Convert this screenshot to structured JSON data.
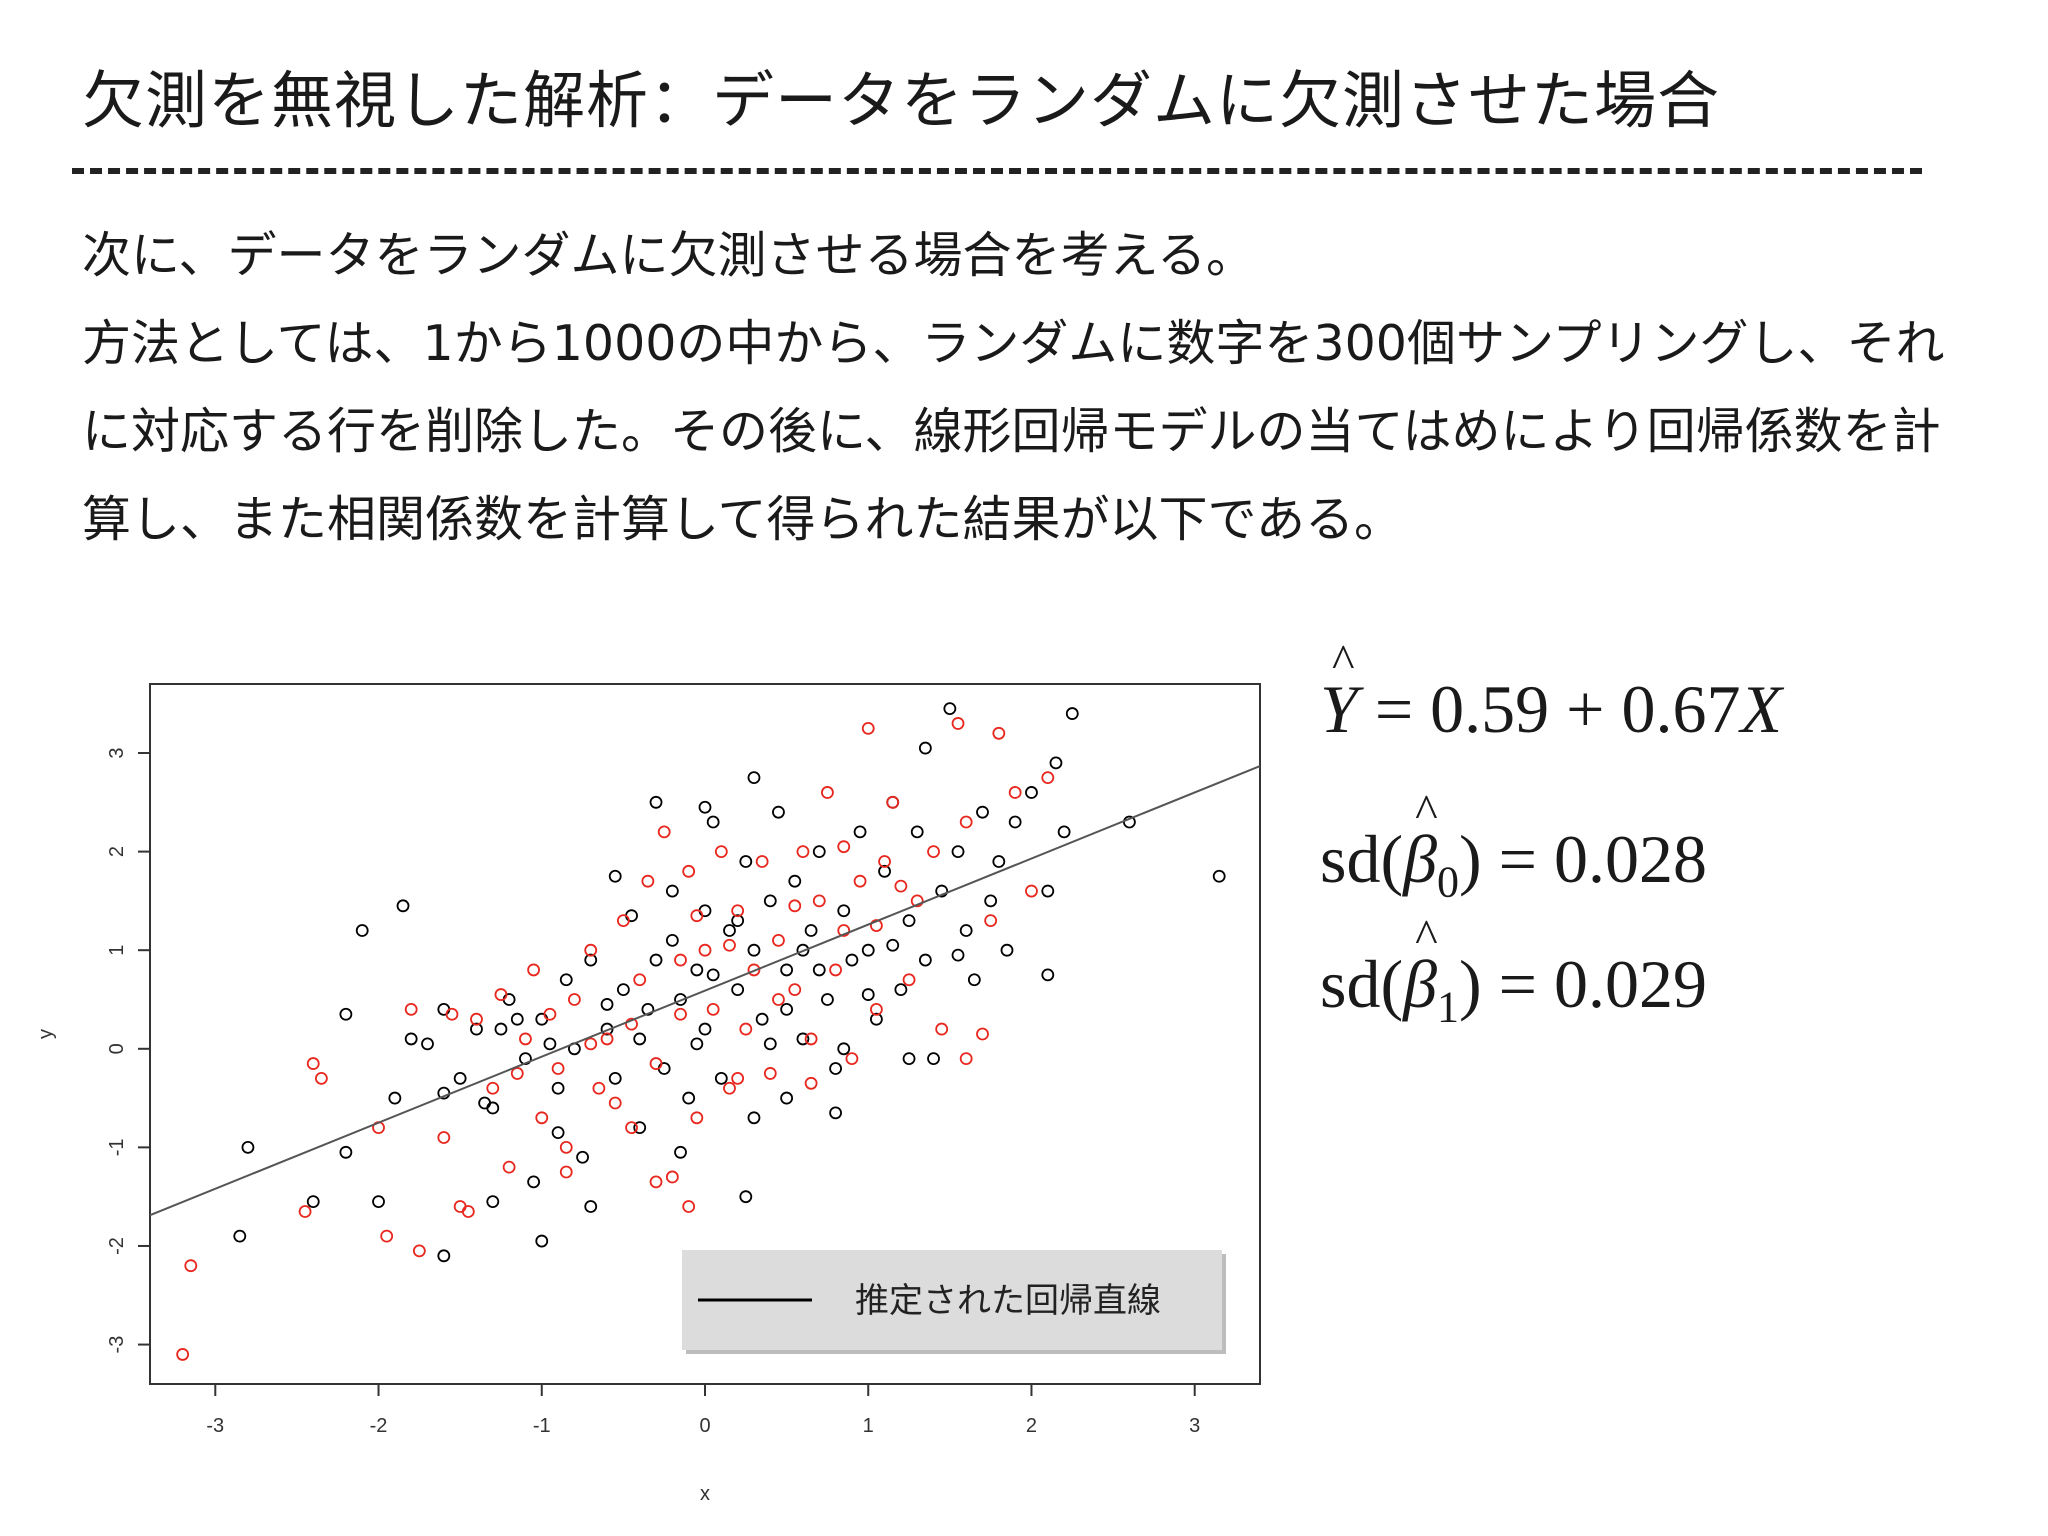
{
  "slide": {
    "title": "欠測を無視した解析：データをランダムに欠測させた場合",
    "paragraphs": [
      "次に、データをランダムに欠測させる場合を考える。",
      "方法としては、1から1000の中から、ランダムに数字を300個サンプリングし、それに対応する行を削除した。その後に、線形回帰モデルの当てはめにより回帰係数を計算し、また相関係数を計算して得られた結果が以下である。"
    ],
    "equations": {
      "regression": {
        "lhs": "Y",
        "rhs": "= 0.59 + 0.67",
        "var": "X"
      },
      "sd_beta0": {
        "lhs": "sd(",
        "sym": "β",
        "sub": "0",
        "rhs": ") = 0.028"
      },
      "sd_beta1": {
        "lhs": "sd(",
        "sym": "β",
        "sub": "1",
        "rhs": ") = 0.029"
      }
    }
  },
  "chart_data": {
    "type": "scatter",
    "xlabel": "x",
    "ylabel": "y",
    "xlim": [
      -3.4,
      3.4
    ],
    "ylim": [
      -3.4,
      3.7
    ],
    "xticks": [
      -3,
      -2,
      -1,
      0,
      1,
      2,
      3
    ],
    "yticks": [
      -3,
      -2,
      -1,
      0,
      1,
      2,
      3
    ],
    "legend": {
      "label": "推定された回帰直線",
      "placement": "bottom-right"
    },
    "regression_line": {
      "intercept": 0.59,
      "slope": 0.67,
      "color": "#555555"
    },
    "series": [
      {
        "color": "#000000",
        "points": [
          [
            -1.85,
            1.45
          ],
          [
            -2.1,
            1.2
          ],
          [
            -2.2,
            0.35
          ],
          [
            -2.8,
            -1.0
          ],
          [
            -2.4,
            -1.55
          ],
          [
            -2.0,
            -1.55
          ],
          [
            -2.2,
            -1.05
          ],
          [
            -1.9,
            -0.5
          ],
          [
            -1.8,
            0.1
          ],
          [
            -1.6,
            0.4
          ],
          [
            -1.5,
            -0.3
          ],
          [
            -1.4,
            0.2
          ],
          [
            -1.3,
            -0.6
          ],
          [
            -1.2,
            0.5
          ],
          [
            -1.1,
            -0.1
          ],
          [
            -1.0,
            0.3
          ],
          [
            -0.9,
            -0.4
          ],
          [
            -0.85,
            0.7
          ],
          [
            -0.8,
            0.0
          ],
          [
            -0.75,
            -1.1
          ],
          [
            -0.7,
            0.9
          ],
          [
            -0.6,
            0.2
          ],
          [
            -0.55,
            -0.3
          ],
          [
            -0.5,
            0.6
          ],
          [
            -0.45,
            1.35
          ],
          [
            -0.4,
            -0.8
          ],
          [
            -0.35,
            0.4
          ],
          [
            -0.3,
            2.5
          ],
          [
            -0.3,
            0.9
          ],
          [
            -0.25,
            -0.2
          ],
          [
            -0.2,
            1.1
          ],
          [
            -0.15,
            0.5
          ],
          [
            -0.1,
            -0.5
          ],
          [
            -0.05,
            0.8
          ],
          [
            0.0,
            1.4
          ],
          [
            0.0,
            0.2
          ],
          [
            0.05,
            2.3
          ],
          [
            0.1,
            -0.3
          ],
          [
            0.15,
            1.2
          ],
          [
            0.2,
            0.6
          ],
          [
            0.25,
            1.9
          ],
          [
            0.3,
            -0.7
          ],
          [
            0.3,
            1.0
          ],
          [
            0.35,
            0.3
          ],
          [
            0.4,
            1.5
          ],
          [
            0.45,
            2.4
          ],
          [
            0.5,
            0.8
          ],
          [
            0.5,
            -0.5
          ],
          [
            0.55,
            1.7
          ],
          [
            0.6,
            0.1
          ],
          [
            0.65,
            1.2
          ],
          [
            0.7,
            2.0
          ],
          [
            0.75,
            0.5
          ],
          [
            0.8,
            -0.2
          ],
          [
            0.85,
            1.4
          ],
          [
            0.9,
            0.9
          ],
          [
            0.95,
            2.2
          ],
          [
            1.0,
            1.0
          ],
          [
            1.05,
            0.3
          ],
          [
            1.1,
            1.8
          ],
          [
            1.15,
            2.5
          ],
          [
            1.2,
            0.6
          ],
          [
            1.25,
            1.3
          ],
          [
            1.3,
            2.2
          ],
          [
            1.35,
            0.9
          ],
          [
            1.4,
            -0.1
          ],
          [
            1.45,
            1.6
          ],
          [
            1.5,
            3.45
          ],
          [
            1.55,
            2.0
          ],
          [
            1.6,
            1.2
          ],
          [
            1.65,
            0.7
          ],
          [
            1.7,
            2.4
          ],
          [
            1.75,
            1.5
          ],
          [
            1.8,
            1.9
          ],
          [
            1.85,
            1.0
          ],
          [
            1.9,
            2.3
          ],
          [
            2.0,
            2.6
          ],
          [
            2.1,
            1.6
          ],
          [
            2.15,
            2.9
          ],
          [
            2.2,
            2.2
          ],
          [
            2.25,
            3.4
          ],
          [
            2.1,
            0.75
          ],
          [
            2.6,
            2.3
          ],
          [
            3.15,
            1.75
          ],
          [
            1.35,
            3.05
          ],
          [
            1.0,
            0.55
          ],
          [
            0.85,
            0.0
          ],
          [
            -1.3,
            -1.55
          ],
          [
            -1.0,
            -1.95
          ],
          [
            -1.6,
            -2.1
          ],
          [
            -2.85,
            -1.9
          ],
          [
            -1.05,
            -1.35
          ],
          [
            -0.7,
            -1.6
          ],
          [
            0.25,
            -1.5
          ],
          [
            0.8,
            -0.65
          ],
          [
            1.25,
            -0.1
          ],
          [
            -0.55,
            1.75
          ],
          [
            -0.2,
            1.6
          ],
          [
            0.3,
            2.75
          ],
          [
            0.0,
            2.45
          ],
          [
            -1.6,
            -0.45
          ],
          [
            -1.7,
            0.05
          ],
          [
            -0.95,
            0.05
          ],
          [
            -0.6,
            0.45
          ],
          [
            0.4,
            0.05
          ],
          [
            0.6,
            1.0
          ],
          [
            1.15,
            1.05
          ],
          [
            -0.05,
            0.05
          ],
          [
            -0.4,
            0.1
          ],
          [
            -1.15,
            0.3
          ],
          [
            -1.35,
            -0.55
          ],
          [
            0.2,
            1.3
          ],
          [
            0.7,
            0.8
          ],
          [
            -1.25,
            0.2
          ],
          [
            -0.9,
            -0.85
          ],
          [
            0.5,
            0.4
          ],
          [
            1.55,
            0.95
          ],
          [
            0.05,
            0.75
          ],
          [
            -0.15,
            -1.05
          ]
        ]
      },
      {
        "color": "#e8281e",
        "points": [
          [
            -3.2,
            -3.1
          ],
          [
            -3.15,
            -2.2
          ],
          [
            -2.45,
            -1.65
          ],
          [
            -2.35,
            -0.3
          ],
          [
            -2.0,
            -0.8
          ],
          [
            -1.95,
            -1.9
          ],
          [
            -1.75,
            -2.05
          ],
          [
            -1.8,
            0.4
          ],
          [
            -1.6,
            -0.9
          ],
          [
            -1.5,
            -1.6
          ],
          [
            -1.4,
            0.3
          ],
          [
            -1.3,
            -0.4
          ],
          [
            -1.2,
            -1.2
          ],
          [
            -1.1,
            0.1
          ],
          [
            -1.05,
            0.8
          ],
          [
            -1.0,
            -0.7
          ],
          [
            -0.95,
            0.35
          ],
          [
            -0.9,
            -0.2
          ],
          [
            -0.85,
            -1.0
          ],
          [
            -0.8,
            0.5
          ],
          [
            -0.7,
            1.0
          ],
          [
            -0.65,
            -0.4
          ],
          [
            -0.6,
            0.1
          ],
          [
            -0.5,
            1.3
          ],
          [
            -0.45,
            -0.8
          ],
          [
            -0.4,
            0.7
          ],
          [
            -0.35,
            1.7
          ],
          [
            -0.3,
            -0.15
          ],
          [
            -0.25,
            2.2
          ],
          [
            -0.2,
            -1.3
          ],
          [
            -0.15,
            0.9
          ],
          [
            -0.1,
            1.8
          ],
          [
            -0.05,
            -0.7
          ],
          [
            0.0,
            1.0
          ],
          [
            0.05,
            0.4
          ],
          [
            0.1,
            2.0
          ],
          [
            0.15,
            -0.4
          ],
          [
            0.2,
            1.4
          ],
          [
            0.25,
            0.2
          ],
          [
            0.3,
            0.8
          ],
          [
            0.35,
            1.9
          ],
          [
            0.4,
            -0.25
          ],
          [
            0.45,
            1.1
          ],
          [
            0.55,
            0.6
          ],
          [
            0.6,
            2.0
          ],
          [
            0.65,
            0.1
          ],
          [
            0.7,
            1.5
          ],
          [
            0.75,
            2.6
          ],
          [
            0.8,
            0.8
          ],
          [
            0.85,
            1.2
          ],
          [
            0.9,
            -0.1
          ],
          [
            0.95,
            1.7
          ],
          [
            1.0,
            3.25
          ],
          [
            1.05,
            0.4
          ],
          [
            1.1,
            1.9
          ],
          [
            1.15,
            2.5
          ],
          [
            1.25,
            0.7
          ],
          [
            1.3,
            1.5
          ],
          [
            1.4,
            2.0
          ],
          [
            1.45,
            0.2
          ],
          [
            1.55,
            3.3
          ],
          [
            1.6,
            2.3
          ],
          [
            1.7,
            0.15
          ],
          [
            1.75,
            1.3
          ],
          [
            1.8,
            3.2
          ],
          [
            1.9,
            2.6
          ],
          [
            2.0,
            1.6
          ],
          [
            2.1,
            2.75
          ],
          [
            1.6,
            -0.1
          ],
          [
            -0.1,
            -1.6
          ],
          [
            -0.85,
            -1.25
          ],
          [
            -0.3,
            -1.35
          ],
          [
            -1.45,
            -1.65
          ],
          [
            -2.4,
            -0.15
          ],
          [
            -1.55,
            0.35
          ],
          [
            -0.45,
            0.25
          ],
          [
            0.2,
            -0.3
          ],
          [
            0.65,
            -0.35
          ],
          [
            1.2,
            1.65
          ],
          [
            -0.7,
            0.05
          ],
          [
            -0.15,
            0.35
          ],
          [
            0.85,
            2.05
          ],
          [
            -1.15,
            -0.25
          ],
          [
            -0.55,
            -0.55
          ],
          [
            0.45,
            0.5
          ],
          [
            -1.25,
            0.55
          ],
          [
            0.15,
            1.05
          ],
          [
            1.05,
            1.25
          ],
          [
            -0.05,
            1.35
          ],
          [
            0.55,
            1.45
          ]
        ]
      }
    ]
  }
}
